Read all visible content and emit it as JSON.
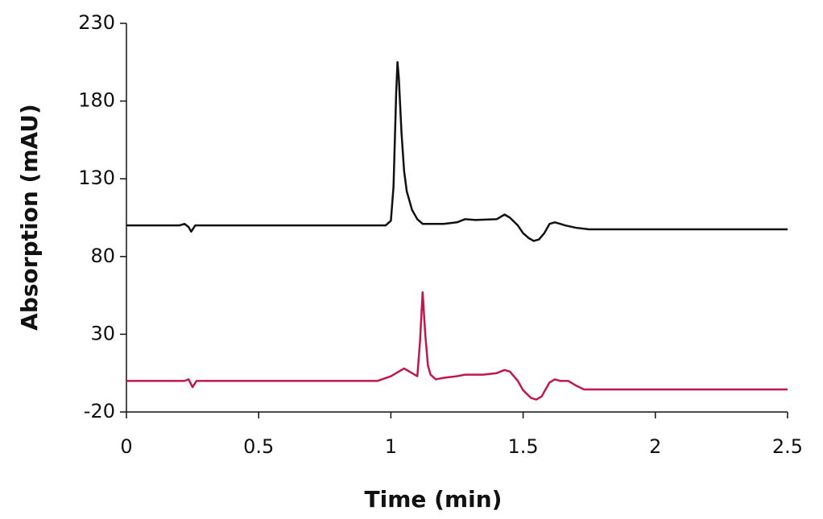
{
  "chart_data": {
    "type": "line",
    "xlabel": "Time (min)",
    "ylabel": "Absorption (mAU)",
    "xlim": [
      0,
      2.5
    ],
    "xticks": [
      0,
      0.5,
      1,
      1.5,
      2,
      2.5
    ],
    "ylim": [
      -20,
      230
    ],
    "yticks": [
      -20,
      30,
      80,
      130,
      180,
      230
    ],
    "grid": false,
    "series": [
      {
        "color": "#111111",
        "x": [
          0,
          0.2,
          0.22,
          0.235,
          0.245,
          0.26,
          0.98,
          1.0,
          1.01,
          1.02,
          1.025,
          1.03,
          1.04,
          1.05,
          1.06,
          1.08,
          1.1,
          1.12,
          1.2,
          1.25,
          1.28,
          1.32,
          1.4,
          1.43,
          1.45,
          1.48,
          1.5,
          1.52,
          1.54,
          1.56,
          1.58,
          1.6,
          1.62,
          1.64,
          1.66,
          1.7,
          1.75,
          2.5
        ],
        "values": [
          100,
          100,
          101,
          99,
          96,
          100,
          100,
          103,
          125,
          185,
          205,
          195,
          160,
          135,
          122,
          110,
          104,
          101,
          101,
          102,
          104,
          103.5,
          104,
          107,
          105,
          100,
          95,
          92,
          90,
          91,
          95,
          101,
          102,
          101,
          100,
          98.5,
          97.5,
          97.5
        ]
      },
      {
        "color": "#c0174a",
        "x": [
          0,
          0.22,
          0.235,
          0.25,
          0.265,
          0.95,
          1.0,
          1.04,
          1.05,
          1.07,
          1.1,
          1.11,
          1.12,
          1.13,
          1.14,
          1.15,
          1.17,
          1.2,
          1.25,
          1.28,
          1.35,
          1.4,
          1.43,
          1.45,
          1.48,
          1.5,
          1.53,
          1.55,
          1.57,
          1.6,
          1.62,
          1.64,
          1.67,
          1.7,
          1.73,
          2.5
        ],
        "values": [
          0,
          0,
          1,
          -4,
          0,
          0,
          3,
          7,
          8,
          6,
          3,
          25,
          57,
          30,
          10,
          4,
          1,
          2,
          3,
          4,
          4,
          5,
          7,
          6,
          0,
          -6,
          -11,
          -12,
          -10,
          -1,
          1,
          0,
          0,
          -3,
          -5.5,
          -5.5
        ]
      }
    ]
  }
}
